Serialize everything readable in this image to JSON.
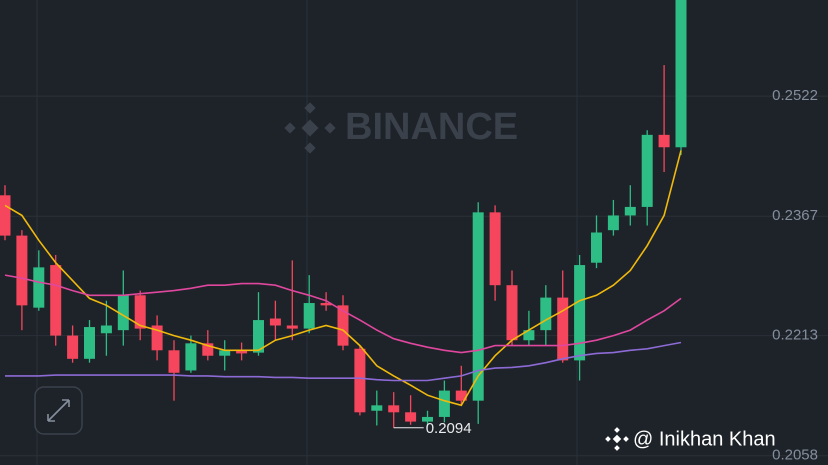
{
  "chart_data": {
    "type": "candlestick",
    "open": [
      0.2394,
      0.2342,
      0.2249,
      0.2304,
      0.2213,
      0.2183,
      0.2216,
      0.222,
      0.2265,
      0.2226,
      0.2194,
      0.2168,
      0.2203,
      0.2187,
      0.2194,
      0.2191,
      0.2235,
      0.2226,
      0.2222,
      0.2255,
      0.2252,
      0.2196,
      0.2116,
      0.2123,
      0.2114,
      0.2102,
      0.2108,
      0.2142,
      0.2129,
      0.2372,
      0.2278,
      0.2207,
      0.222,
      0.2262,
      0.2181,
      0.2307,
      0.2349,
      0.2368,
      0.2379,
      0.2472,
      0.2456
    ],
    "high": [
      0.2407,
      0.2349,
      0.2323,
      0.2317,
      0.2226,
      0.2233,
      0.2258,
      0.2297,
      0.2271,
      0.2239,
      0.2207,
      0.2213,
      0.222,
      0.2207,
      0.2204,
      0.2269,
      0.2258,
      0.231,
      0.2291,
      0.2269,
      0.2265,
      0.22,
      0.2142,
      0.214,
      0.2136,
      0.2116,
      0.2155,
      0.2174,
      0.2385,
      0.2381,
      0.2297,
      0.2245,
      0.2278,
      0.2297,
      0.2317,
      0.2368,
      0.2388,
      0.2407,
      0.2478,
      0.2562,
      0.265
    ],
    "low": [
      0.2336,
      0.222,
      0.2245,
      0.22,
      0.2178,
      0.2178,
      0.2187,
      0.22,
      0.2207,
      0.2181,
      0.2129,
      0.2165,
      0.2181,
      0.2168,
      0.2181,
      0.2187,
      0.2207,
      0.2207,
      0.2216,
      0.2245,
      0.2194,
      0.211,
      0.2097,
      0.2094,
      0.2098,
      0.2096,
      0.2101,
      0.2123,
      0.2099,
      0.2258,
      0.22,
      0.22,
      0.22,
      0.2178,
      0.2155,
      0.23,
      0.2342,
      0.2355,
      0.2355,
      0.2424,
      0.2446
    ],
    "close": [
      0.2342,
      0.2252,
      0.2301,
      0.2213,
      0.2183,
      0.2224,
      0.2226,
      0.2265,
      0.2222,
      0.2194,
      0.2165,
      0.2203,
      0.2187,
      0.2194,
      0.219,
      0.2233,
      0.2226,
      0.2222,
      0.2255,
      0.2252,
      0.22,
      0.2114,
      0.2123,
      0.2114,
      0.2102,
      0.2108,
      0.2142,
      0.2129,
      0.2372,
      0.2278,
      0.2207,
      0.222,
      0.2262,
      0.2181,
      0.2304,
      0.2346,
      0.2368,
      0.2379,
      0.2472,
      0.2456,
      0.265
    ],
    "up_color": "#2ebd85",
    "down_color": "#f6465d",
    "lines": [
      {
        "color": "#f0b90b",
        "values": [
          0.2381,
          0.2368,
          0.2336,
          0.2307,
          0.2284,
          0.2261,
          0.2252,
          0.2239,
          0.2226,
          0.222,
          0.2213,
          0.2207,
          0.22,
          0.2194,
          0.2194,
          0.2194,
          0.2207,
          0.2213,
          0.222,
          0.2226,
          0.222,
          0.22,
          0.2174,
          0.2161,
          0.2149,
          0.2136,
          0.2129,
          0.2123,
          0.2161,
          0.2187,
          0.2207,
          0.222,
          0.2233,
          0.2245,
          0.2258,
          0.2265,
          0.2278,
          0.2297,
          0.2329,
          0.2368,
          0.2452
        ]
      },
      {
        "color": "#e0479e",
        "values": [
          0.2291,
          0.2287,
          0.2282,
          0.2278,
          0.2271,
          0.2265,
          0.2265,
          0.2265,
          0.2267,
          0.2269,
          0.2271,
          0.2274,
          0.2278,
          0.2278,
          0.228,
          0.228,
          0.2278,
          0.2271,
          0.2265,
          0.2258,
          0.2245,
          0.2233,
          0.222,
          0.2209,
          0.2203,
          0.2198,
          0.2194,
          0.2191,
          0.2194,
          0.22,
          0.22,
          0.22,
          0.22,
          0.22,
          0.2203,
          0.2207,
          0.2213,
          0.222,
          0.2233,
          0.2245,
          0.2261
        ]
      },
      {
        "color": "#8d6bd6",
        "values": [
          0.2161,
          0.2161,
          0.2161,
          0.2162,
          0.2162,
          0.2162,
          0.2162,
          0.2162,
          0.2162,
          0.2162,
          0.2162,
          0.2161,
          0.2161,
          0.216,
          0.216,
          0.216,
          0.2159,
          0.2159,
          0.2158,
          0.2158,
          0.2158,
          0.2158,
          0.2156,
          0.2155,
          0.2155,
          0.2155,
          0.2158,
          0.2161,
          0.2168,
          0.2171,
          0.2172,
          0.2174,
          0.2178,
          0.2183,
          0.2187,
          0.219,
          0.2191,
          0.2194,
          0.2196,
          0.22,
          0.2204
        ]
      }
    ],
    "ylim": [
      0.2046,
      0.2646
    ],
    "yticks": [
      0.2058,
      0.2213,
      0.2367,
      0.2522
    ],
    "grid": true,
    "low_marker": 0.2094
  },
  "watermark": "BINANCE",
  "credit": "@ Inikhan Khan"
}
